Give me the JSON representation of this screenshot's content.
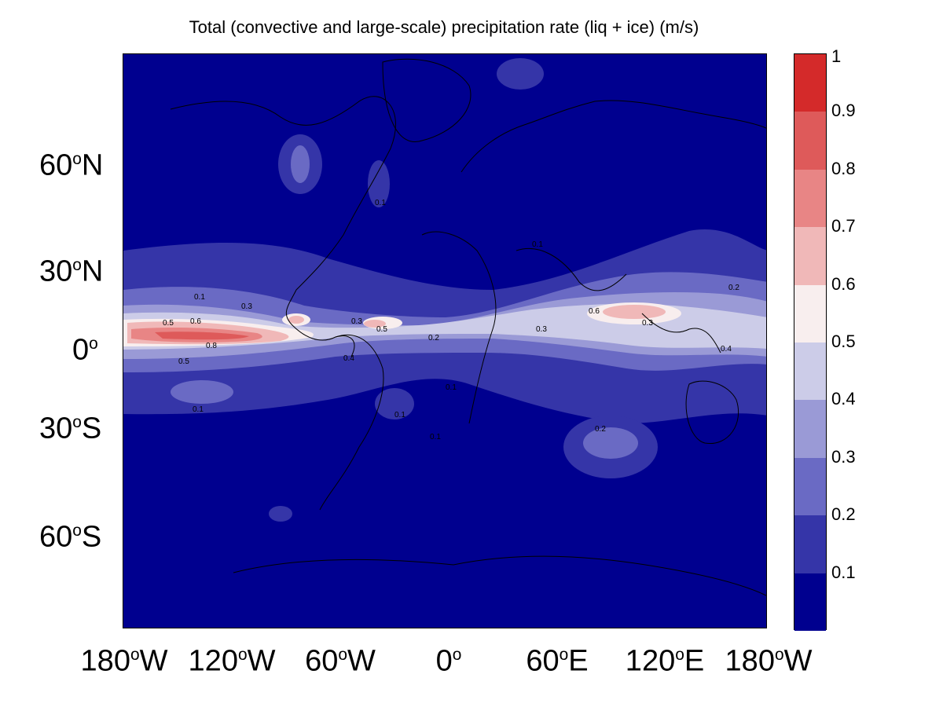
{
  "title": "Total (convective and large-scale) precipitation rate (liq + ice) (m/s)",
  "axes": {
    "y_ticks": [
      {
        "value": "60",
        "sup": "o",
        "dir": "N"
      },
      {
        "value": "30",
        "sup": "o",
        "dir": "N"
      },
      {
        "value": "0",
        "sup": "o",
        "dir": ""
      },
      {
        "value": "30",
        "sup": "o",
        "dir": "S"
      },
      {
        "value": "60",
        "sup": "o",
        "dir": "S"
      }
    ],
    "x_ticks": [
      {
        "value": "180",
        "sup": "o",
        "dir": "W"
      },
      {
        "value": "120",
        "sup": "o",
        "dir": "W"
      },
      {
        "value": "60",
        "sup": "o",
        "dir": "W"
      },
      {
        "value": "0",
        "sup": "o",
        "dir": ""
      },
      {
        "value": "60",
        "sup": "o",
        "dir": "E"
      },
      {
        "value": "120",
        "sup": "o",
        "dir": "E"
      },
      {
        "value": "180",
        "sup": "o",
        "dir": "W"
      }
    ]
  },
  "colorbar": {
    "labels": [
      "1",
      "0.9",
      "0.8",
      "0.7",
      "0.6",
      "0.5",
      "0.4",
      "0.3",
      "0.2",
      "0.1"
    ],
    "colors": [
      "#d42a2a",
      "#de5a5a",
      "#e88585",
      "#f0b8b8",
      "#f8eeee",
      "#cccce8",
      "#9a9ad6",
      "#6a6ac4",
      "#3535a8",
      "#00008f"
    ]
  },
  "contour_labels": [
    "0.1",
    "0.2",
    "0.3",
    "0.4",
    "0.5",
    "0.6",
    "0.8"
  ],
  "colors": {
    "ocean_low": "#00008f",
    "coastline": "#000000"
  }
}
